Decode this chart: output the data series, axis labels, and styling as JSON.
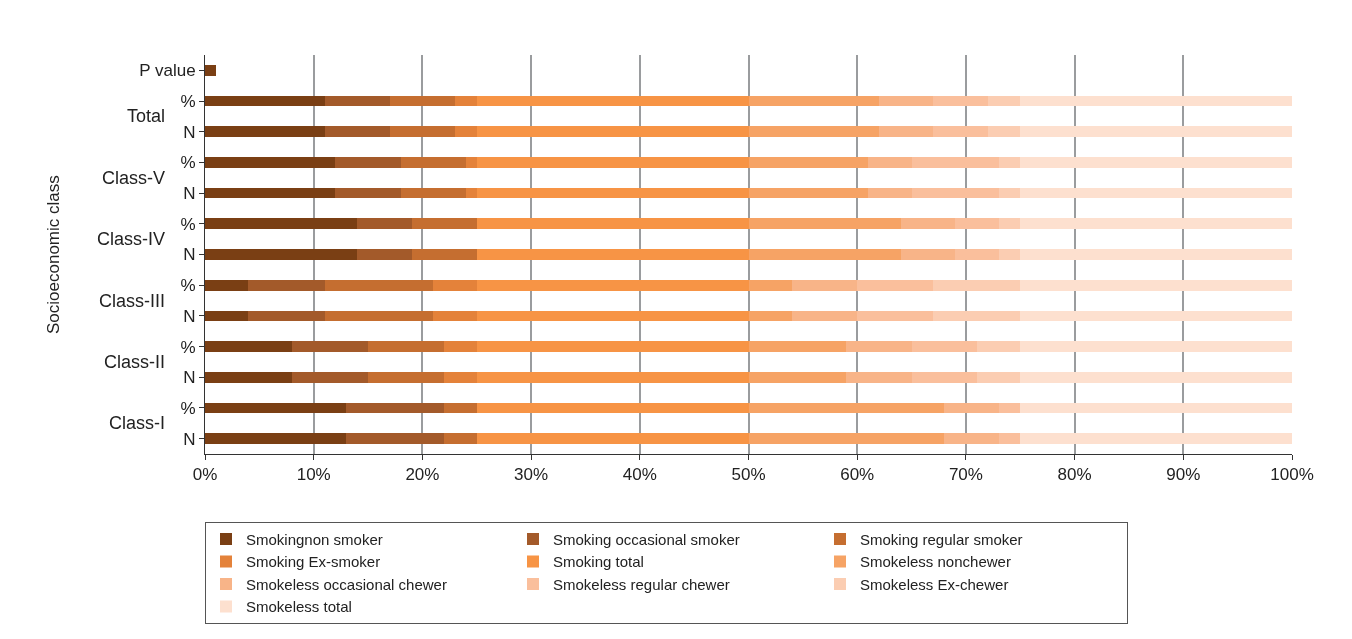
{
  "chart_data": {
    "type": "bar",
    "orientation": "horizontal",
    "stacked": true,
    "ylabel": "Socioeconomic class",
    "categories": [
      "P value",
      "%",
      "N",
      "%",
      "N",
      "%",
      "N",
      "%",
      "N",
      "%",
      "N",
      "%",
      "N"
    ],
    "annotations": [
      "Total",
      "Class-V",
      "Class-IV",
      "Class-III",
      "Class-II",
      "Class-I"
    ],
    "series": [
      {
        "name": "Smokingnon smoker",
        "color": "#7a3f14",
        "values": [
          1,
          11,
          11,
          12,
          12,
          14,
          14,
          4,
          4,
          8,
          8,
          13,
          13
        ]
      },
      {
        "name": "Smoking occasional smoker",
        "color": "#a35a2a",
        "values": [
          null,
          6,
          6,
          6,
          6,
          5,
          5,
          7,
          7,
          7,
          7,
          9,
          9
        ]
      },
      {
        "name": "Smoking regular smoker",
        "color": "#c56e30",
        "values": [
          null,
          6,
          6,
          6,
          6,
          6,
          6,
          10,
          10,
          7,
          7,
          3,
          3
        ]
      },
      {
        "name": "Smoking Ex-smoker",
        "color": "#e4823a",
        "values": [
          null,
          2,
          2,
          1,
          1,
          0,
          0,
          4,
          4,
          3,
          3,
          0,
          0
        ]
      },
      {
        "name": "Smoking total",
        "color": "#f79445",
        "values": [
          null,
          25,
          25,
          25,
          25,
          25,
          25,
          25,
          25,
          25,
          25,
          25,
          25
        ]
      },
      {
        "name": "Smokeless nonchewer",
        "color": "#f6a365",
        "values": [
          null,
          12,
          12,
          11,
          11,
          14,
          14,
          4,
          4,
          9,
          9,
          18,
          18
        ]
      },
      {
        "name": "Smokeless occasional chewer",
        "color": "#f8b488",
        "values": [
          null,
          5,
          5,
          4,
          4,
          5,
          5,
          6,
          6,
          6,
          6,
          5,
          5
        ]
      },
      {
        "name": "Smokeless regular chewer",
        "color": "#fabf9c",
        "values": [
          null,
          5,
          5,
          8,
          8,
          4,
          4,
          7,
          7,
          6,
          6,
          2,
          2
        ]
      },
      {
        "name": "Smokeless Ex-chewer",
        "color": "#fbcdb2",
        "values": [
          null,
          3,
          3,
          2,
          2,
          2,
          2,
          8,
          8,
          4,
          4,
          0,
          0
        ]
      },
      {
        "name": "Smokeless total",
        "color": "#fde0cf",
        "values": [
          null,
          25,
          25,
          25,
          25,
          25,
          25,
          25,
          25,
          25,
          25,
          25,
          25
        ]
      }
    ],
    "xlim": [
      0,
      100
    ],
    "xticks": [
      {
        "value": 0,
        "label": "0%"
      },
      {
        "value": 10,
        "label": "10%"
      },
      {
        "value": 20,
        "label": "20%"
      },
      {
        "value": 30,
        "label": "30%"
      },
      {
        "value": 40,
        "label": "40%"
      },
      {
        "value": 50,
        "label": "50%"
      },
      {
        "value": 60,
        "label": "60%"
      },
      {
        "value": 70,
        "label": "70%"
      },
      {
        "value": 80,
        "label": "80%"
      },
      {
        "value": 90,
        "label": "90%"
      },
      {
        "value": 100,
        "label": "100%"
      }
    ],
    "grid": "x",
    "legend": "bottom"
  }
}
